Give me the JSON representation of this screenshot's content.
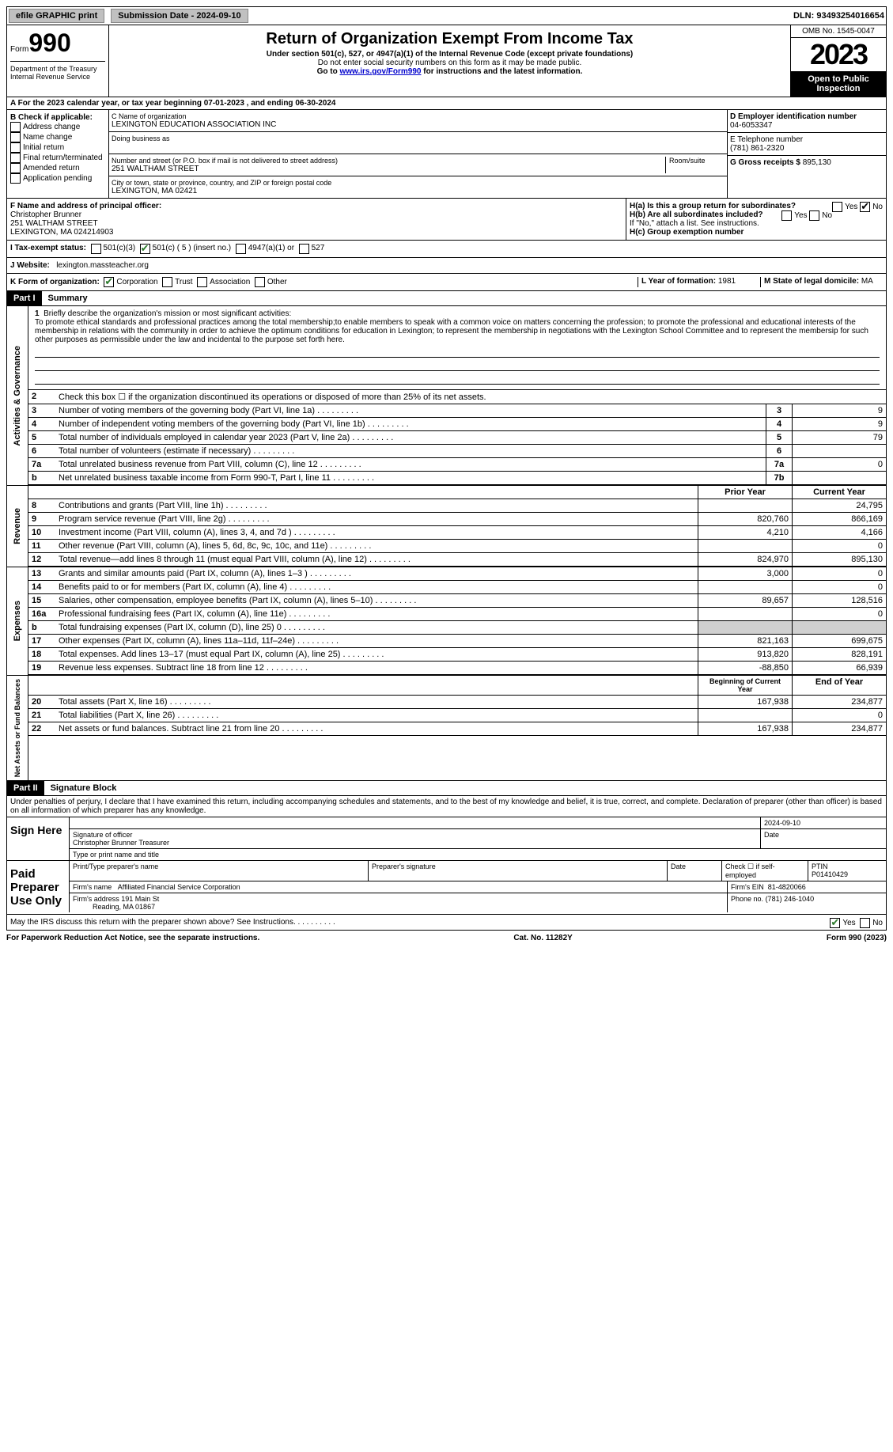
{
  "top": {
    "efile": "efile GRAPHIC print",
    "submission": "Submission Date - 2024-09-10",
    "dln": "DLN: 93493254016654"
  },
  "header": {
    "form_word": "Form",
    "form_num": "990",
    "title": "Return of Organization Exempt From Income Tax",
    "subtitle": "Under section 501(c), 527, or 4947(a)(1) of the Internal Revenue Code (except private foundations)",
    "ssn_warn": "Do not enter social security numbers on this form as it may be made public.",
    "goto": "Go to",
    "goto_link": "www.irs.gov/Form990",
    "goto_tail": "for instructions and the latest information.",
    "omb": "OMB No. 1545-0047",
    "year": "2023",
    "open": "Open to Public Inspection",
    "dept": "Department of the Treasury Internal Revenue Service"
  },
  "a_line": "A For the 2023 calendar year, or tax year beginning 07-01-2023   , and ending 06-30-2024",
  "b": {
    "label": "B Check if applicable:",
    "opts": [
      "Address change",
      "Name change",
      "Initial return",
      "Final return/terminated",
      "Amended return",
      "Application pending"
    ]
  },
  "c": {
    "name_label": "C Name of organization",
    "name": "LEXINGTON EDUCATION ASSOCIATION INC",
    "dba_label": "Doing business as",
    "street_label": "Number and street (or P.O. box if mail is not delivered to street address)",
    "room_label": "Room/suite",
    "street": "251 WALTHAM STREET",
    "city_label": "City or town, state or province, country, and ZIP or foreign postal code",
    "city": "LEXINGTON, MA  02421"
  },
  "d": {
    "label": "D Employer identification number",
    "value": "04-6053347"
  },
  "e": {
    "label": "E Telephone number",
    "value": "(781) 861-2320"
  },
  "g": {
    "label": "G Gross receipts $",
    "value": "895,130"
  },
  "f": {
    "label": "F  Name and address of principal officer:",
    "name": "Christopher Brunner",
    "street": "251 WALTHAM STREET",
    "city": "LEXINGTON, MA  024214903"
  },
  "h": {
    "ha": "H(a)  Is this a group return for subordinates?",
    "hb": "H(b)  Are all subordinates included?",
    "hb_note": "If \"No,\" attach a list. See instructions.",
    "hc": "H(c)  Group exemption number",
    "yes": "Yes",
    "no": "No"
  },
  "i": {
    "label": "I   Tax-exempt status:",
    "c3": "501(c)(3)",
    "c": "501(c) ( 5 ) (insert no.)",
    "a1": "4947(a)(1) or",
    "527": "527"
  },
  "j": {
    "label": "J   Website:",
    "value": "lexington.massteacher.org"
  },
  "k": {
    "label": "K Form of organization:",
    "corp": "Corporation",
    "trust": "Trust",
    "assoc": "Association",
    "other": "Other"
  },
  "l": {
    "label": "L Year of formation:",
    "value": "1981"
  },
  "m": {
    "label": "M State of legal domicile:",
    "value": "MA"
  },
  "part1": {
    "label": "Part I",
    "title": "Summary"
  },
  "mission": {
    "num": "1",
    "label": "Briefly describe the organization's mission or most significant activities:",
    "text": "To promote ethical standards and professional practices among the total membership;to enable members to speak with a common voice on matters concerning the profession; to promote the professional and educational interests of the membership in relations with the community in order to achieve the optimum conditions for education in Lexington; to represent the membership in negotiations with the Lexington School Committee and to represent the membersip for such other purposes as permissible under the law and incidental to the purpose set forth here."
  },
  "ag": "Activities & Governance",
  "lines_ag": [
    {
      "n": "2",
      "t": "Check this box ☐ if the organization discontinued its operations or disposed of more than 25% of its net assets."
    },
    {
      "n": "3",
      "t": "Number of voting members of the governing body (Part VI, line 1a)",
      "k": "3",
      "v": "9"
    },
    {
      "n": "4",
      "t": "Number of independent voting members of the governing body (Part VI, line 1b)",
      "k": "4",
      "v": "9"
    },
    {
      "n": "5",
      "t": "Total number of individuals employed in calendar year 2023 (Part V, line 2a)",
      "k": "5",
      "v": "79"
    },
    {
      "n": "6",
      "t": "Total number of volunteers (estimate if necessary)",
      "k": "6",
      "v": ""
    },
    {
      "n": "7a",
      "t": "Total unrelated business revenue from Part VIII, column (C), line 12",
      "k": "7a",
      "v": "0"
    },
    {
      "n": "b",
      "t": "Net unrelated business taxable income from Form 990-T, Part I, line 11",
      "k": "7b",
      "v": ""
    }
  ],
  "rev": "Revenue",
  "rev_head": {
    "py": "Prior Year",
    "cy": "Current Year"
  },
  "lines_rev": [
    {
      "n": "8",
      "t": "Contributions and grants (Part VIII, line 1h)",
      "py": "",
      "cy": "24,795"
    },
    {
      "n": "9",
      "t": "Program service revenue (Part VIII, line 2g)",
      "py": "820,760",
      "cy": "866,169"
    },
    {
      "n": "10",
      "t": "Investment income (Part VIII, column (A), lines 3, 4, and 7d )",
      "py": "4,210",
      "cy": "4,166"
    },
    {
      "n": "11",
      "t": "Other revenue (Part VIII, column (A), lines 5, 6d, 8c, 9c, 10c, and 11e)",
      "py": "",
      "cy": "0"
    },
    {
      "n": "12",
      "t": "Total revenue—add lines 8 through 11 (must equal Part VIII, column (A), line 12)",
      "py": "824,970",
      "cy": "895,130"
    }
  ],
  "exp": "Expenses",
  "lines_exp": [
    {
      "n": "13",
      "t": "Grants and similar amounts paid (Part IX, column (A), lines 1–3 )",
      "py": "3,000",
      "cy": "0"
    },
    {
      "n": "14",
      "t": "Benefits paid to or for members (Part IX, column (A), line 4)",
      "py": "",
      "cy": "0"
    },
    {
      "n": "15",
      "t": "Salaries, other compensation, employee benefits (Part IX, column (A), lines 5–10)",
      "py": "89,657",
      "cy": "128,516"
    },
    {
      "n": "16a",
      "t": "Professional fundraising fees (Part IX, column (A), line 11e)",
      "py": "",
      "cy": "0"
    },
    {
      "n": "b",
      "t": "Total fundraising expenses (Part IX, column (D), line 25) 0",
      "py": "SHADE",
      "cy": "SHADE"
    },
    {
      "n": "17",
      "t": "Other expenses (Part IX, column (A), lines 11a–11d, 11f–24e)",
      "py": "821,163",
      "cy": "699,675"
    },
    {
      "n": "18",
      "t": "Total expenses. Add lines 13–17 (must equal Part IX, column (A), line 25)",
      "py": "913,820",
      "cy": "828,191"
    },
    {
      "n": "19",
      "t": "Revenue less expenses. Subtract line 18 from line 12",
      "py": "-88,850",
      "cy": "66,939"
    }
  ],
  "na": "Net Assets or Fund Balances",
  "na_head": {
    "by": "Beginning of Current Year",
    "ey": "End of Year"
  },
  "lines_na": [
    {
      "n": "20",
      "t": "Total assets (Part X, line 16)",
      "py": "167,938",
      "cy": "234,877"
    },
    {
      "n": "21",
      "t": "Total liabilities (Part X, line 26)",
      "py": "",
      "cy": "0"
    },
    {
      "n": "22",
      "t": "Net assets or fund balances. Subtract line 21 from line 20",
      "py": "167,938",
      "cy": "234,877"
    }
  ],
  "part2": {
    "label": "Part II",
    "title": "Signature Block"
  },
  "perjury": "Under penalties of perjury, I declare that I have examined this return, including accompanying schedules and statements, and to the best of my knowledge and belief, it is true, correct, and complete. Declaration of preparer (other than officer) is based on all information of which preparer has any knowledge.",
  "sign": {
    "here": "Sign Here",
    "date": "2024-09-10",
    "sig_label": "Signature of officer",
    "name": "Christopher Brunner  Treasurer",
    "name_label": "Type or print name and title",
    "date_label": "Date"
  },
  "paid": {
    "label": "Paid Preparer Use Only",
    "prep_name_label": "Print/Type preparer's name",
    "prep_sig_label": "Preparer's signature",
    "date_label": "Date",
    "check_label": "Check ☐ if self-employed",
    "ptin_label": "PTIN",
    "ptin": "P01410429",
    "firm_name_label": "Firm's name",
    "firm_name": "Affiliated Financial Service Corporation",
    "firm_ein_label": "Firm's EIN",
    "firm_ein": "81-4820066",
    "firm_addr_label": "Firm's address",
    "firm_addr1": "191 Main St",
    "firm_addr2": "Reading, MA  01867",
    "phone_label": "Phone no.",
    "phone": "(781) 246-1040"
  },
  "irs_discuss": "May the IRS discuss this return with the preparer shown above? See Instructions.",
  "footer": {
    "pra": "For Paperwork Reduction Act Notice, see the separate instructions.",
    "cat": "Cat. No. 11282Y",
    "form": "Form 990 (2023)"
  }
}
